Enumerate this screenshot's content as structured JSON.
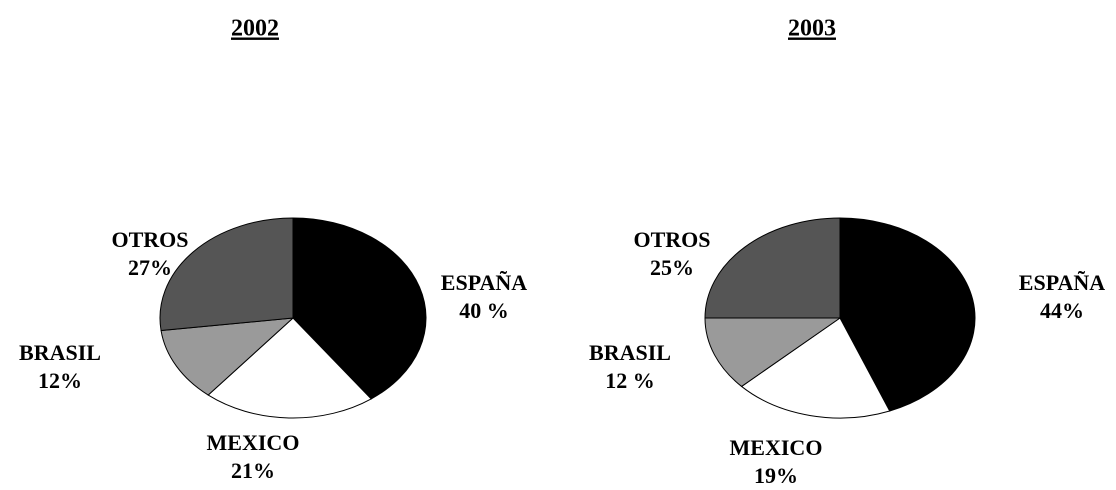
{
  "chart_data": [
    {
      "type": "pie",
      "title": "2002",
      "categories": [
        "ESPAÑA",
        "MEXICO",
        "BRASIL",
        "OTROS"
      ],
      "values": [
        40,
        21,
        12,
        27
      ],
      "value_labels": [
        "40 %",
        "21%",
        "12%",
        "27%"
      ],
      "colors": [
        "#000000",
        "#ffffff",
        "#9a9a9a",
        "#555555"
      ]
    },
    {
      "type": "pie",
      "title": "2003",
      "categories": [
        "ESPAÑA",
        "MEXICO",
        "BRASIL",
        "OTROS"
      ],
      "values": [
        44,
        19,
        12,
        25
      ],
      "value_labels": [
        "44%",
        "19%",
        "12 %",
        "25%"
      ],
      "colors": [
        "#000000",
        "#ffffff",
        "#9a9a9a",
        "#555555"
      ]
    }
  ]
}
